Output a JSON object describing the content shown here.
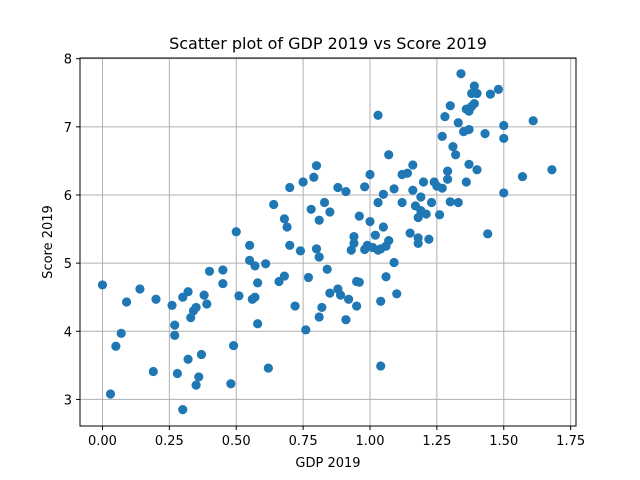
{
  "chart_data": {
    "type": "scatter",
    "title": "Scatter plot of GDP 2019 vs Score 2019",
    "xlabel": "GDP 2019",
    "ylabel": "Score 2019",
    "xlim": [
      -0.084,
      1.77
    ],
    "ylim": [
      2.61,
      8.01
    ],
    "xticks": [
      "0.00",
      "0.25",
      "0.50",
      "0.75",
      "1.00",
      "1.25",
      "1.50",
      "1.75"
    ],
    "yticks": [
      "3",
      "4",
      "5",
      "6",
      "7",
      "8"
    ],
    "grid": true,
    "legend": "none",
    "colors": {
      "marker": "#1f77b4",
      "grid": "#b0b0b0",
      "axis": "#000000"
    },
    "series": [
      {
        "points": [
          [
            0.0,
            4.68
          ],
          [
            0.03,
            3.08
          ],
          [
            0.05,
            3.78
          ],
          [
            0.07,
            3.97
          ],
          [
            0.09,
            4.43
          ],
          [
            0.14,
            4.62
          ],
          [
            0.19,
            3.41
          ],
          [
            0.2,
            4.47
          ],
          [
            0.26,
            4.38
          ],
          [
            0.27,
            4.09
          ],
          [
            0.27,
            3.94
          ],
          [
            0.28,
            3.38
          ],
          [
            0.3,
            2.85
          ],
          [
            0.3,
            4.5
          ],
          [
            0.32,
            4.58
          ],
          [
            0.32,
            3.59
          ],
          [
            0.33,
            4.2
          ],
          [
            0.34,
            4.3
          ],
          [
            0.35,
            4.35
          ],
          [
            0.35,
            3.21
          ],
          [
            0.36,
            3.33
          ],
          [
            0.37,
            3.66
          ],
          [
            0.38,
            4.53
          ],
          [
            0.39,
            4.4
          ],
          [
            0.4,
            4.88
          ],
          [
            0.45,
            4.9
          ],
          [
            0.45,
            4.7
          ],
          [
            0.48,
            3.23
          ],
          [
            0.49,
            3.79
          ],
          [
            0.5,
            5.46
          ],
          [
            0.51,
            4.52
          ],
          [
            0.55,
            5.26
          ],
          [
            0.55,
            5.04
          ],
          [
            0.56,
            4.47
          ],
          [
            0.57,
            4.5
          ],
          [
            0.57,
            4.96
          ],
          [
            0.58,
            4.11
          ],
          [
            0.58,
            4.71
          ],
          [
            0.61,
            4.99
          ],
          [
            0.62,
            3.46
          ],
          [
            0.64,
            5.86
          ],
          [
            0.66,
            4.73
          ],
          [
            0.68,
            4.81
          ],
          [
            0.68,
            5.65
          ],
          [
            0.69,
            5.53
          ],
          [
            0.7,
            6.11
          ],
          [
            0.7,
            5.26
          ],
          [
            0.72,
            4.37
          ],
          [
            0.74,
            5.18
          ],
          [
            0.75,
            6.19
          ],
          [
            0.76,
            4.02
          ],
          [
            0.77,
            4.79
          ],
          [
            0.78,
            5.79
          ],
          [
            0.79,
            6.26
          ],
          [
            0.8,
            6.43
          ],
          [
            0.8,
            5.21
          ],
          [
            0.81,
            5.63
          ],
          [
            0.81,
            5.09
          ],
          [
            0.81,
            4.21
          ],
          [
            0.82,
            4.35
          ],
          [
            0.83,
            5.89
          ],
          [
            0.84,
            4.91
          ],
          [
            0.85,
            4.56
          ],
          [
            0.85,
            5.75
          ],
          [
            0.88,
            4.62
          ],
          [
            0.88,
            6.11
          ],
          [
            0.89,
            4.53
          ],
          [
            0.91,
            6.05
          ],
          [
            0.91,
            4.17
          ],
          [
            0.92,
            4.47
          ],
          [
            0.93,
            5.19
          ],
          [
            0.94,
            5.29
          ],
          [
            0.94,
            5.39
          ],
          [
            0.95,
            4.73
          ],
          [
            0.95,
            4.37
          ],
          [
            0.96,
            5.69
          ],
          [
            0.96,
            4.72
          ],
          [
            0.98,
            5.2
          ],
          [
            0.98,
            6.12
          ],
          [
            0.99,
            5.26
          ],
          [
            1.0,
            5.61
          ],
          [
            1.0,
            6.3
          ],
          [
            1.01,
            5.23
          ],
          [
            1.02,
            5.41
          ],
          [
            1.03,
            5.89
          ],
          [
            1.03,
            5.19
          ],
          [
            1.03,
            7.17
          ],
          [
            1.04,
            5.21
          ],
          [
            1.04,
            3.49
          ],
          [
            1.04,
            4.44
          ],
          [
            1.05,
            5.53
          ],
          [
            1.05,
            6.01
          ],
          [
            1.06,
            4.8
          ],
          [
            1.06,
            5.25
          ],
          [
            1.07,
            5.33
          ],
          [
            1.07,
            6.59
          ],
          [
            1.09,
            6.09
          ],
          [
            1.09,
            5.01
          ],
          [
            1.1,
            4.55
          ],
          [
            1.12,
            5.89
          ],
          [
            1.12,
            6.3
          ],
          [
            1.14,
            6.32
          ],
          [
            1.15,
            5.44
          ],
          [
            1.16,
            6.44
          ],
          [
            1.16,
            6.07
          ],
          [
            1.17,
            5.84
          ],
          [
            1.18,
            5.29
          ],
          [
            1.18,
            5.37
          ],
          [
            1.18,
            5.67
          ],
          [
            1.19,
            5.97
          ],
          [
            1.19,
            5.77
          ],
          [
            1.2,
            6.19
          ],
          [
            1.21,
            5.72
          ],
          [
            1.22,
            5.35
          ],
          [
            1.23,
            5.89
          ],
          [
            1.24,
            6.19
          ],
          [
            1.25,
            6.13
          ],
          [
            1.26,
            5.71
          ],
          [
            1.27,
            6.1
          ],
          [
            1.27,
            6.86
          ],
          [
            1.28,
            7.15
          ],
          [
            1.29,
            6.35
          ],
          [
            1.29,
            6.23
          ],
          [
            1.3,
            7.31
          ],
          [
            1.3,
            5.9
          ],
          [
            1.31,
            6.71
          ],
          [
            1.32,
            6.59
          ],
          [
            1.33,
            7.06
          ],
          [
            1.33,
            5.89
          ],
          [
            1.34,
            7.78
          ],
          [
            1.35,
            6.93
          ],
          [
            1.36,
            6.19
          ],
          [
            1.36,
            7.26
          ],
          [
            1.37,
            7.23
          ],
          [
            1.37,
            6.45
          ],
          [
            1.37,
            6.96
          ],
          [
            1.38,
            7.3
          ],
          [
            1.38,
            7.49
          ],
          [
            1.39,
            7.34
          ],
          [
            1.39,
            7.6
          ],
          [
            1.4,
            6.37
          ],
          [
            1.4,
            7.49
          ],
          [
            1.43,
            6.9
          ],
          [
            1.44,
            5.43
          ],
          [
            1.45,
            7.48
          ],
          [
            1.48,
            7.55
          ],
          [
            1.5,
            6.03
          ],
          [
            1.5,
            7.02
          ],
          [
            1.5,
            6.83
          ],
          [
            1.57,
            6.27
          ],
          [
            1.61,
            7.09
          ],
          [
            1.68,
            6.37
          ]
        ]
      }
    ]
  }
}
